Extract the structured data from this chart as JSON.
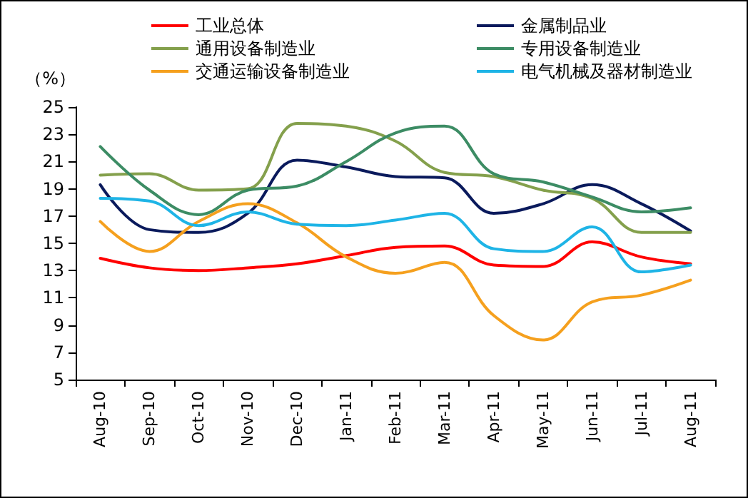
{
  "chart_data": {
    "type": "line",
    "ylabel": "（%）",
    "categories": [
      "Aug-10",
      "Sep-10",
      "Oct-10",
      "Nov-10",
      "Dec-10",
      "Jan-11",
      "Feb-11",
      "Mar-11",
      "Apr-11",
      "May-11",
      "Jun-11",
      "Jul-11",
      "Aug-11"
    ],
    "series": [
      {
        "name": "工业总体",
        "color": "#ff0000",
        "values": [
          13.9,
          13.2,
          13.0,
          13.2,
          13.5,
          14.1,
          14.7,
          14.8,
          13.4,
          13.3,
          15.1,
          14.0,
          13.5
        ]
      },
      {
        "name": "金属制品业",
        "color": "#0a1a5c",
        "values": [
          19.3,
          16.0,
          15.8,
          17.2,
          21.1,
          20.6,
          19.9,
          19.8,
          17.2,
          17.9,
          19.3,
          17.9,
          15.9
        ]
      },
      {
        "name": "通用设备制造业",
        "color": "#84a04c",
        "values": [
          20.0,
          20.1,
          18.9,
          19.0,
          23.8,
          23.6,
          22.5,
          20.2,
          19.9,
          18.9,
          18.3,
          15.8,
          15.8
        ]
      },
      {
        "name": "专用设备制造业",
        "color": "#3c8c64",
        "values": [
          22.1,
          18.9,
          17.1,
          18.9,
          19.2,
          21.0,
          23.1,
          23.6,
          20.1,
          19.5,
          18.4,
          17.3,
          17.6
        ]
      },
      {
        "name": "交通运输设备制造业",
        "color": "#f5a01e",
        "values": [
          16.6,
          14.4,
          16.6,
          17.9,
          16.5,
          14.0,
          12.8,
          13.6,
          9.7,
          7.9,
          10.7,
          11.2,
          12.3
        ]
      },
      {
        "name": "电气机械及器材制造业",
        "color": "#1eb4e6",
        "values": [
          18.3,
          18.1,
          16.3,
          17.3,
          16.4,
          16.3,
          16.7,
          17.2,
          14.6,
          14.4,
          16.2,
          12.9,
          13.4
        ]
      }
    ],
    "ylim": [
      5,
      25
    ],
    "yticks": [
      5,
      7,
      9,
      11,
      13,
      15,
      17,
      19,
      21,
      23,
      25
    ],
    "grid": false,
    "legend": "top",
    "marker": "none",
    "line_style": "solid"
  }
}
